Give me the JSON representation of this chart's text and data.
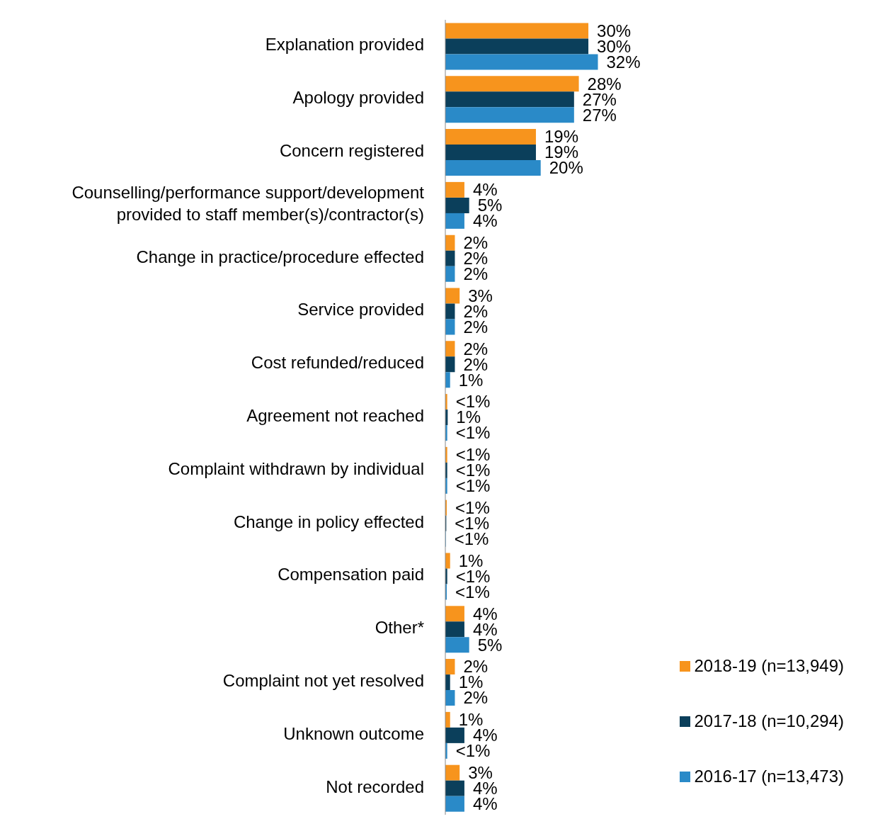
{
  "chart_data": {
    "type": "bar",
    "orientation": "horizontal",
    "categories": [
      "Explanation provided",
      "Apology provided",
      "Concern registered",
      "Counselling/performance support/development provided to staff member(s)/contractor(s)",
      "Change in practice/procedure effected",
      "Service provided",
      "Cost refunded/reduced",
      "Agreement not reached",
      "Complaint withdrawn by individual",
      "Change in policy effected",
      "Compensation paid",
      "Other*",
      "Complaint not yet resolved",
      "Unknown outcome",
      "Not recorded"
    ],
    "series": [
      {
        "name": "2018-19 (n=13,949)",
        "color": "#f7941d",
        "values": [
          30,
          28,
          19,
          4,
          2,
          3,
          2,
          0.4,
          0.4,
          0.3,
          1,
          4,
          2,
          1,
          3
        ],
        "value_labels": [
          "30%",
          "28%",
          "19%",
          "4%",
          "2%",
          "3%",
          "2%",
          "<1%",
          "<1%",
          "<1%",
          "1%",
          "4%",
          "2%",
          "1%",
          "3%"
        ]
      },
      {
        "name": "2017-18 (n=10,294)",
        "color": "#0b3f5b",
        "values": [
          30,
          27,
          19,
          5,
          2,
          2,
          2,
          0.5,
          0.4,
          0.2,
          0.4,
          4,
          1,
          4,
          4
        ],
        "value_labels": [
          "30%",
          "27%",
          "19%",
          "5%",
          "2%",
          "2%",
          "2%",
          "1%",
          "<1%",
          "<1%",
          "<1%",
          "4%",
          "1%",
          "4%",
          "4%"
        ]
      },
      {
        "name": "2016-17 (n=13,473)",
        "color": "#2a8ac8",
        "values": [
          32,
          27,
          20,
          4,
          2,
          2,
          1,
          0.4,
          0.4,
          0.1,
          0.3,
          5,
          2,
          0.4,
          4
        ],
        "value_labels": [
          "32%",
          "27%",
          "20%",
          "4%",
          "2%",
          "2%",
          "1%",
          "<1%",
          "<1%",
          "<1%",
          "<1%",
          "5%",
          "2%",
          "<1%",
          "4%"
        ]
      }
    ],
    "legend": "bottom right"
  }
}
